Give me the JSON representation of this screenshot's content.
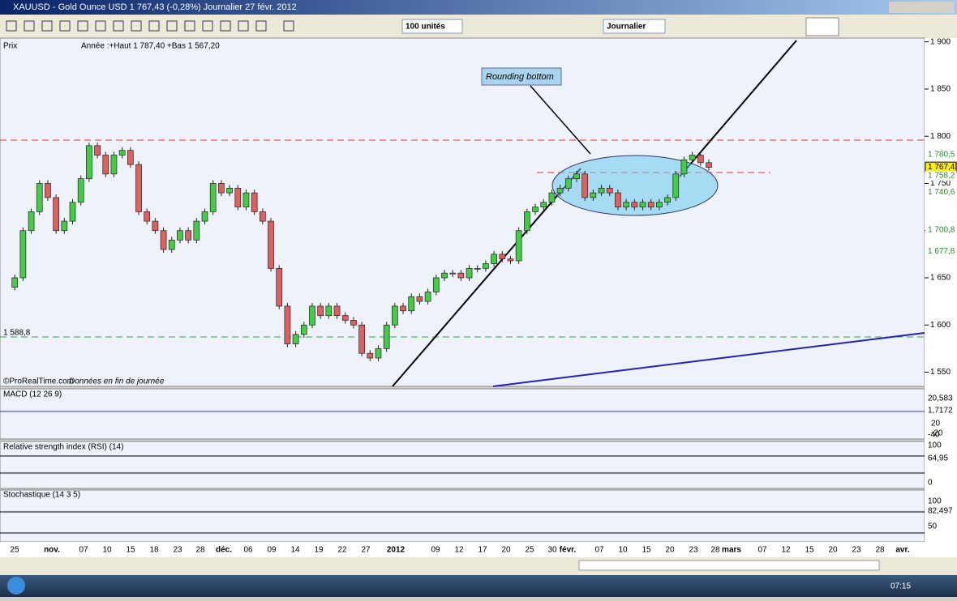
{
  "window": {
    "title": "XAUUSD - Gold Ounce USD   1 767,43 (-0,28%)   Journalier  27 févr. 2012"
  },
  "toolbar": {
    "quantity": "100 unités",
    "period": "Journalier"
  },
  "price_panel": {
    "label": "Prix",
    "info": "Année :+Haut 1 787,40 +Bas 1 567,20",
    "annotation": "Rounding bottom",
    "level_label": "1 588,8",
    "credit": "©ProRealTime.com",
    "credit_note": "Données en fin de journée",
    "ylim": [
      1535,
      1904
    ],
    "yticks": [
      {
        "value": 1900,
        "label": "1 900"
      },
      {
        "value": 1850,
        "label": "1 850"
      },
      {
        "value": 1800,
        "label": "1 800"
      },
      {
        "value": 1750,
        "label": "1 750"
      },
      {
        "value": 1700,
        "label": "1 700"
      },
      {
        "value": 1650,
        "label": "1 650"
      },
      {
        "value": 1600,
        "label": "1 600"
      },
      {
        "value": 1550,
        "label": "1 550"
      }
    ],
    "price_labels": [
      {
        "value": 1780.5,
        "label": "1 780,5"
      },
      {
        "value": 1767.43,
        "label": "1 767,43"
      },
      {
        "value": 1758.2,
        "label": "1 758,2"
      },
      {
        "value": 1740.6,
        "label": "1 740,6"
      },
      {
        "value": 1700.8,
        "label": "1 700,8"
      },
      {
        "value": 1677.8,
        "label": "1 677,8"
      }
    ],
    "closes": [
      1640,
      1650,
      1700,
      1720,
      1750,
      1735,
      1700,
      1710,
      1730,
      1755,
      1790,
      1780,
      1760,
      1780,
      1785,
      1770,
      1720,
      1710,
      1700,
      1680,
      1690,
      1700,
      1690,
      1710,
      1720,
      1750,
      1740,
      1745,
      1725,
      1740,
      1720,
      1710,
      1660,
      1620,
      1580,
      1590,
      1600,
      1620,
      1610,
      1620,
      1610,
      1605,
      1600,
      1570,
      1565,
      1575,
      1600,
      1620,
      1615,
      1630,
      1625,
      1635,
      1650,
      1655,
      1655,
      1650,
      1660,
      1660,
      1665,
      1675,
      1670,
      1668,
      1700,
      1720,
      1725,
      1730,
      1740,
      1745,
      1755,
      1760,
      1735,
      1740,
      1745,
      1740,
      1725,
      1730,
      1725,
      1730,
      1725,
      1730,
      1735,
      1760,
      1775,
      1780,
      1772,
      1767
    ]
  },
  "macd": {
    "label": "MACD (12 26 9)",
    "scale_labels": [
      "20,583",
      "1,7172",
      "20",
      "-20",
      "-40"
    ]
  },
  "rsi": {
    "label": "Relative strength index (RSI) (14)",
    "scale_labels": [
      "100",
      "64,95",
      "0"
    ]
  },
  "stochastic": {
    "label": "Stochastique (14 3 5)",
    "scale_labels": [
      "100",
      "82,497",
      "50"
    ]
  },
  "date_axis": [
    "25",
    "nov.",
    "07",
    "10",
    "15",
    "18",
    "23",
    "28",
    "déc.",
    "06",
    "09",
    "14",
    "19",
    "22",
    "27",
    "2012",
    "09",
    "12",
    "17",
    "20",
    "25",
    "30",
    "févr.",
    "07",
    "10",
    "15",
    "20",
    "23",
    "28",
    "mars",
    "07",
    "12",
    "15",
    "20",
    "23",
    "28",
    "avr."
  ],
  "taskbar": {
    "clock": "07:15"
  }
}
